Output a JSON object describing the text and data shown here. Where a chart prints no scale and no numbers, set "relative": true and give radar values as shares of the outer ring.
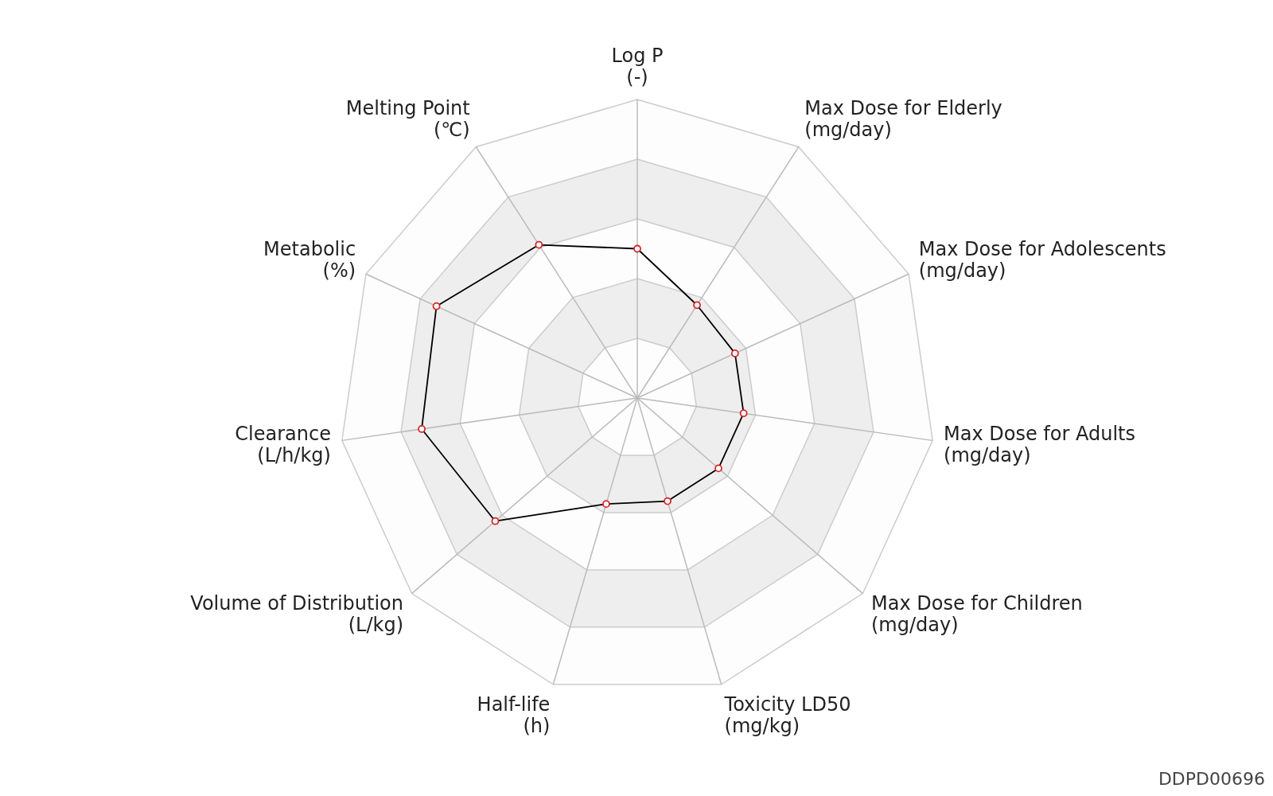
{
  "chart_data": {
    "type": "radar",
    "relative": true,
    "categories": [
      "Log P\n(-)",
      "Max Dose for Elderly\n(mg/day)",
      "Max Dose for Adolescents\n(mg/day)",
      "Max Dose for Adults\n(mg/day)",
      "Max Dose for Children\n(mg/day)",
      "Toxicity LD50\n(mg/kg)",
      "Half-life\n(h)",
      "Volume of Distribution\n(L/kg)",
      "Clearance\n(L/h/kg)",
      "Metabolic\n(%)",
      "Melting Point\n(℃)"
    ],
    "series": [
      {
        "color": "#000000",
        "values": [
          0.5,
          0.37,
          0.36,
          0.36,
          0.36,
          0.36,
          0.37,
          0.63,
          0.73,
          0.74,
          0.61
        ]
      }
    ],
    "marker": "circle",
    "line_style": "solid",
    "annotations": [
      "DDPD00696"
    ]
  }
}
